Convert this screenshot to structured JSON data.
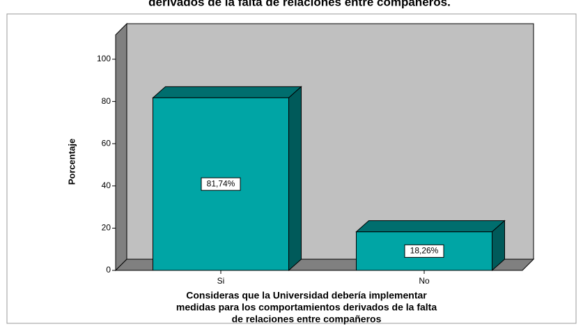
{
  "chart_data": {
    "type": "bar3d",
    "title": "derivados de la falta de relaciones entre compañeros.",
    "x_label": [
      "Consideras que la Universidad debería implementar",
      "medidas para los comportamientos derivados de la falta",
      "de relaciones entre compañeros"
    ],
    "y_label": "Porcentaje",
    "categories": [
      "Si",
      "No"
    ],
    "values": [
      81.74,
      18.26
    ],
    "value_labels": [
      "81,74%",
      "18,26%"
    ],
    "color": "#00a5a5",
    "ylim": [
      0,
      100
    ],
    "yticks": [
      0,
      20,
      40,
      60,
      80,
      100
    ]
  }
}
